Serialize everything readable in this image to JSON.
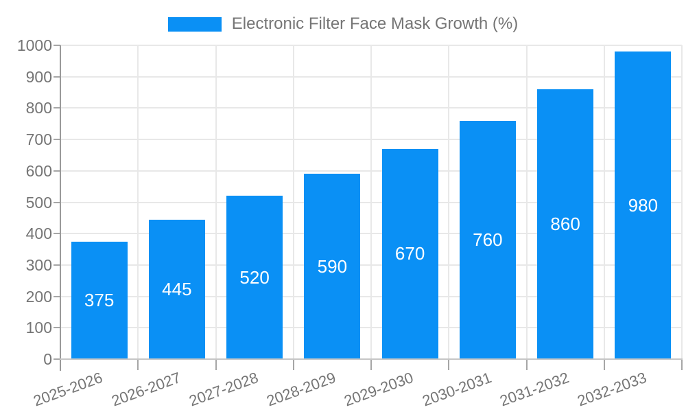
{
  "chart_data": {
    "type": "bar",
    "title": "Electronic Filter Face Mask Growth (%)",
    "legend": {
      "label": "Electronic Filter Face Mask Growth (%)",
      "position": "top"
    },
    "categories": [
      "2025-2026",
      "2026-2027",
      "2027-2028",
      "2028-2029",
      "2029-2030",
      "2030-2031",
      "2031-2032",
      "2032-2033"
    ],
    "values": [
      375,
      445,
      520,
      590,
      670,
      760,
      860,
      980
    ],
    "xlabel": "",
    "ylabel": "",
    "ylim": [
      0,
      1000
    ],
    "ytick_step": 100,
    "yticks": [
      0,
      100,
      200,
      300,
      400,
      500,
      600,
      700,
      800,
      900,
      1000
    ],
    "grid": true,
    "colors": {
      "bar": "#0a90f5",
      "bar_label": "#ffffff",
      "axis_text": "#757575",
      "gridline": "#e8e8e8",
      "axis_line": "#9a9a9a",
      "baseline": "#c6c6c6",
      "tick": "#a6a6a6",
      "background": "#ffffff"
    }
  }
}
